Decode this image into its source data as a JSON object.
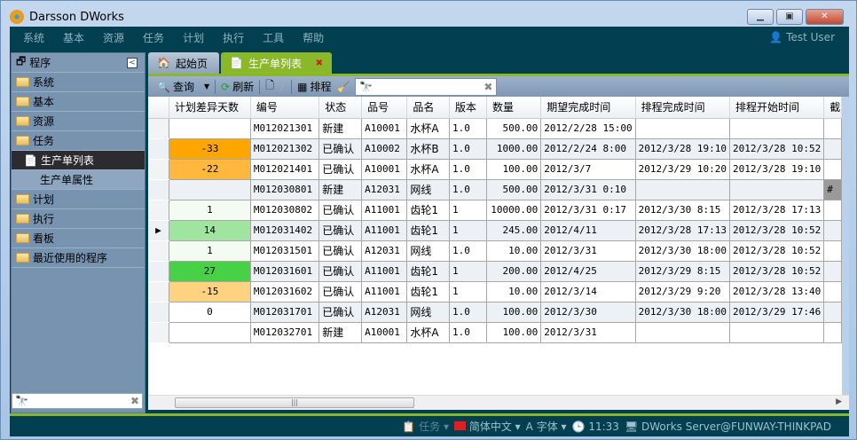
{
  "window": {
    "title": "Darsson DWorks"
  },
  "menu": [
    "系统",
    "基本",
    "资源",
    "任务",
    "计划",
    "执行",
    "工具",
    "帮助"
  ],
  "user": "Test User",
  "sidebar": {
    "title": "程序",
    "items": [
      {
        "label": "系统",
        "type": "folder"
      },
      {
        "label": "基本",
        "type": "folder"
      },
      {
        "label": "资源",
        "type": "folder"
      },
      {
        "label": "任务",
        "type": "folder"
      },
      {
        "label": "生产单列表",
        "type": "selected"
      },
      {
        "label": "生产单属性",
        "type": "sub"
      },
      {
        "label": "计划",
        "type": "folder"
      },
      {
        "label": "执行",
        "type": "folder"
      },
      {
        "label": "看板",
        "type": "folder"
      },
      {
        "label": "最近使用的程序",
        "type": "folder"
      }
    ],
    "search_value": ""
  },
  "tabs": [
    {
      "label": "起始页"
    },
    {
      "label": "生产单列表",
      "active": true
    }
  ],
  "toolbar": {
    "query": "查询",
    "refresh": "刷新",
    "schedule": "排程",
    "search_value": ""
  },
  "table": {
    "columns": [
      "计划差异天数",
      "编号",
      "状态",
      "品号",
      "品名",
      "版本",
      "数量",
      "期望完成时间",
      "排程完成时间",
      "排程开始时间",
      "截"
    ],
    "rows": [
      {
        "diff": "",
        "color": "",
        "cells": [
          "M012021301",
          "新建",
          "A10001",
          "水杯A",
          "1.0",
          "500.00",
          "2012/2/28 15:00",
          "",
          "",
          ""
        ]
      },
      {
        "diff": "-33",
        "color": "#ffa500",
        "cells": [
          "M012021302",
          "已确认",
          "A10002",
          "水杯B",
          "1.0",
          "1000.00",
          "2012/2/24 8:00",
          "2012/3/28 19:10",
          "2012/3/28 10:52",
          ""
        ]
      },
      {
        "diff": "-22",
        "color": "#ffb73e",
        "cells": [
          "M012021401",
          "已确认",
          "A10001",
          "水杯A",
          "1.0",
          "100.00",
          "2012/3/7",
          "2012/3/29 10:20",
          "2012/3/28 19:10",
          ""
        ]
      },
      {
        "diff": "",
        "color": "",
        "cells": [
          "M012030801",
          "新建",
          "A12031",
          "网线",
          "1.0",
          "500.00",
          "2012/3/31 0:10",
          "",
          "",
          "#"
        ]
      },
      {
        "diff": "1",
        "color": "#f4fbf3",
        "cells": [
          "M012030802",
          "已确认",
          "A11001",
          "齿轮1",
          "1",
          "10000.00",
          "2012/3/31 0:17",
          "2012/3/30 8:15",
          "2012/3/28 17:13",
          ""
        ]
      },
      {
        "diff": "14",
        "color": "#9fe59f",
        "cells": [
          "M012031402",
          "已确认",
          "A11001",
          "齿轮1",
          "1",
          "245.00",
          "2012/4/11",
          "2012/3/28 17:13",
          "2012/3/28 10:52",
          ""
        ],
        "current": true
      },
      {
        "diff": "1",
        "color": "#f4fbf3",
        "cells": [
          "M012031501",
          "已确认",
          "A12031",
          "网线",
          "1.0",
          "10.00",
          "2012/3/31",
          "2012/3/30 18:00",
          "2012/3/28 10:52",
          ""
        ]
      },
      {
        "diff": "27",
        "color": "#47d147",
        "cells": [
          "M012031601",
          "已确认",
          "A11001",
          "齿轮1",
          "1",
          "200.00",
          "2012/4/25",
          "2012/3/29 8:15",
          "2012/3/28 10:52",
          ""
        ]
      },
      {
        "diff": "-15",
        "color": "#ffd27f",
        "cells": [
          "M012031602",
          "已确认",
          "A11001",
          "齿轮1",
          "1",
          "10.00",
          "2012/3/14",
          "2012/3/29 9:20",
          "2012/3/28 13:40",
          ""
        ]
      },
      {
        "diff": "0",
        "color": "#ffffff",
        "cells": [
          "M012031701",
          "已确认",
          "A12031",
          "网线",
          "1.0",
          "100.00",
          "2012/3/30",
          "2012/3/30 18:00",
          "2012/3/29 17:46",
          ""
        ]
      },
      {
        "diff": "",
        "color": "",
        "cells": [
          "M012032701",
          "新建",
          "A10001",
          "水杯A",
          "1.0",
          "100.00",
          "2012/3/31",
          "",
          "",
          ""
        ]
      }
    ]
  },
  "status": {
    "task": "任务",
    "language": "简体中文",
    "font": "字体",
    "time": "11:33",
    "server": "DWorks Server@FUNWAY-THINKPAD"
  }
}
